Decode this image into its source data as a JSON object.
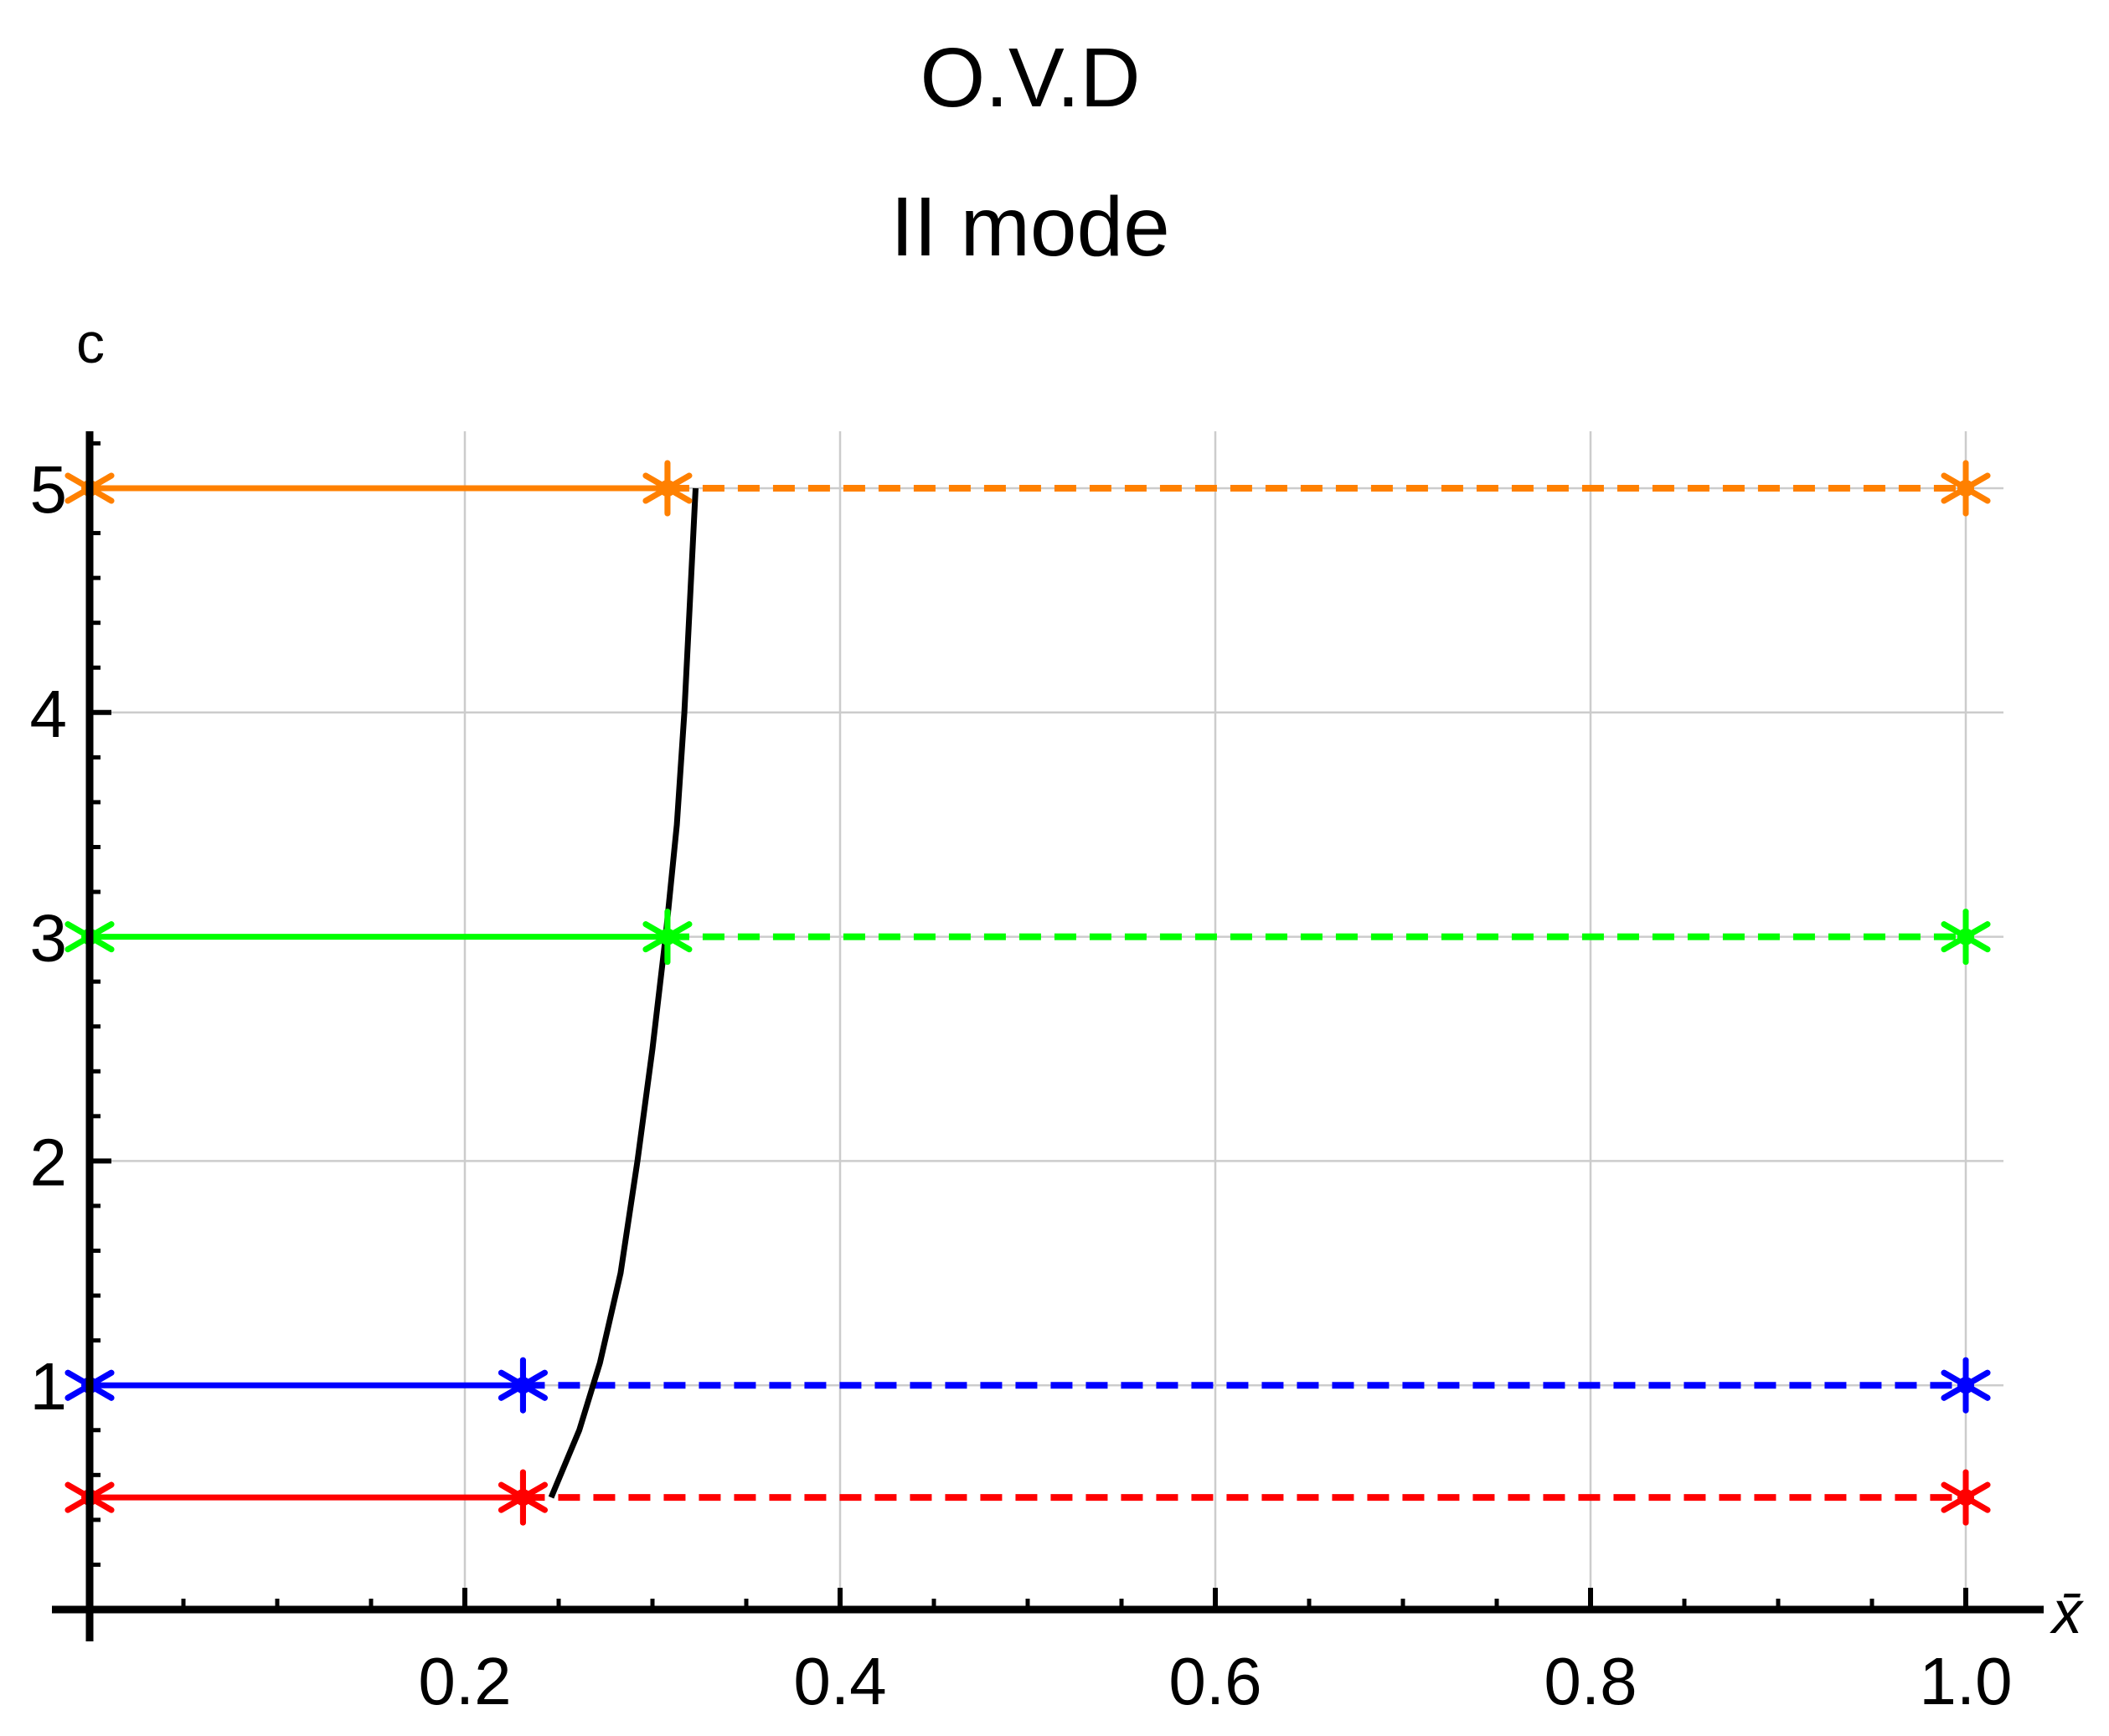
{
  "chart_data": {
    "type": "line",
    "title": "O.V.D",
    "subtitle": "II mode",
    "xlabel": "x̄",
    "ylabel": "c",
    "xlim": [
      0.0,
      1.02
    ],
    "ylim": [
      0.0,
      5.25
    ],
    "x_ticks": [
      0.2,
      0.4,
      0.6,
      0.8,
      1.0
    ],
    "x_tick_labels": [
      "0.2",
      "0.4",
      "0.6",
      "0.8",
      "1.0"
    ],
    "y_ticks": [
      1,
      2,
      3,
      4,
      5
    ],
    "y_tick_labels": [
      "1",
      "2",
      "3",
      "4",
      "5"
    ],
    "grid": true,
    "series": [
      {
        "color": "#ff0000",
        "c": 0.5,
        "x_transition": 0.231,
        "x_end": 1.0
      },
      {
        "color": "#0000ff",
        "c": 1.0,
        "x_transition": 0.231,
        "x_end": 1.0
      },
      {
        "color": "#00ff00",
        "c": 3.0,
        "x_transition": 0.308,
        "x_end": 1.0
      },
      {
        "color": "#ff8000",
        "c": 5.0,
        "x_transition": 0.308,
        "x_end": 1.0
      }
    ],
    "boundary_curve": {
      "color": "#000000",
      "points": [
        [
          0.246,
          0.5
        ],
        [
          0.261,
          0.8
        ],
        [
          0.272,
          1.1
        ],
        [
          0.283,
          1.5
        ],
        [
          0.292,
          2.0
        ],
        [
          0.3,
          2.5
        ],
        [
          0.307,
          3.0
        ],
        [
          0.313,
          3.5
        ],
        [
          0.317,
          4.0
        ],
        [
          0.32,
          4.5
        ],
        [
          0.323,
          5.0
        ]
      ]
    }
  }
}
